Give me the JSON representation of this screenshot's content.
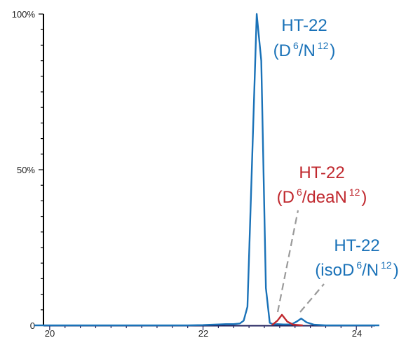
{
  "chart_data": {
    "type": "line",
    "title": "",
    "xlabel": "",
    "ylabel": "",
    "xlim": [
      19.8,
      24.3
    ],
    "ylim": [
      0,
      100
    ],
    "x_ticks": [
      20,
      22,
      24
    ],
    "x_tick_labels": [
      "20",
      "22",
      "24"
    ],
    "y_ticks": [
      0,
      50,
      100
    ],
    "y_tick_labels": [
      "0",
      "50%",
      "100%"
    ],
    "grid": false,
    "series": [
      {
        "color": "#1a72b8",
        "x": [
          19.8,
          21.8,
          22.0,
          22.2,
          22.3,
          22.4,
          22.48,
          22.53,
          22.58,
          22.63,
          22.7,
          22.76,
          22.82,
          22.87,
          22.92,
          22.97,
          23.05,
          23.15,
          23.22,
          23.28,
          23.35,
          23.45,
          23.6,
          24.3
        ],
        "y": [
          0,
          0,
          0.1,
          0.3,
          0.4,
          0.4,
          0.6,
          1.5,
          6,
          45,
          100,
          85,
          12,
          0.8,
          0.3,
          0.4,
          0.3,
          0.3,
          1.2,
          2.2,
          1,
          0.2,
          0,
          0
        ]
      },
      {
        "color": "#c0282e",
        "x": [
          22.9,
          22.97,
          23.03,
          23.1,
          23.18,
          23.3
        ],
        "y": [
          0.1,
          1.5,
          3.4,
          1.2,
          0.2,
          0
        ]
      }
    ],
    "annotations": [
      {
        "color": "#1a72b8",
        "line1": "HT-22",
        "prefix": "(",
        "sup1": "6",
        "mid": "/N",
        "sup2": "12",
        "suffix": ")",
        "mainbody": "D"
      },
      {
        "color": "#c0282e",
        "line1": "HT-22",
        "prefix": "(",
        "sup1": "6",
        "mid": "/deaN",
        "sup2": "12",
        "suffix": ")",
        "mainbody": "D"
      },
      {
        "color": "#1a72b8",
        "line1": "HT-22",
        "prefix": "(",
        "sup1": "6",
        "mid": "/N",
        "sup2": "12",
        "suffix": ")",
        "mainbody": "isoD"
      }
    ],
    "leader_lines": [
      {
        "from_x": 22.95,
        "from_y": 1.5,
        "color": "#999999"
      },
      {
        "from_x": 23.25,
        "from_y": 1.5,
        "color": "#999999"
      }
    ]
  }
}
